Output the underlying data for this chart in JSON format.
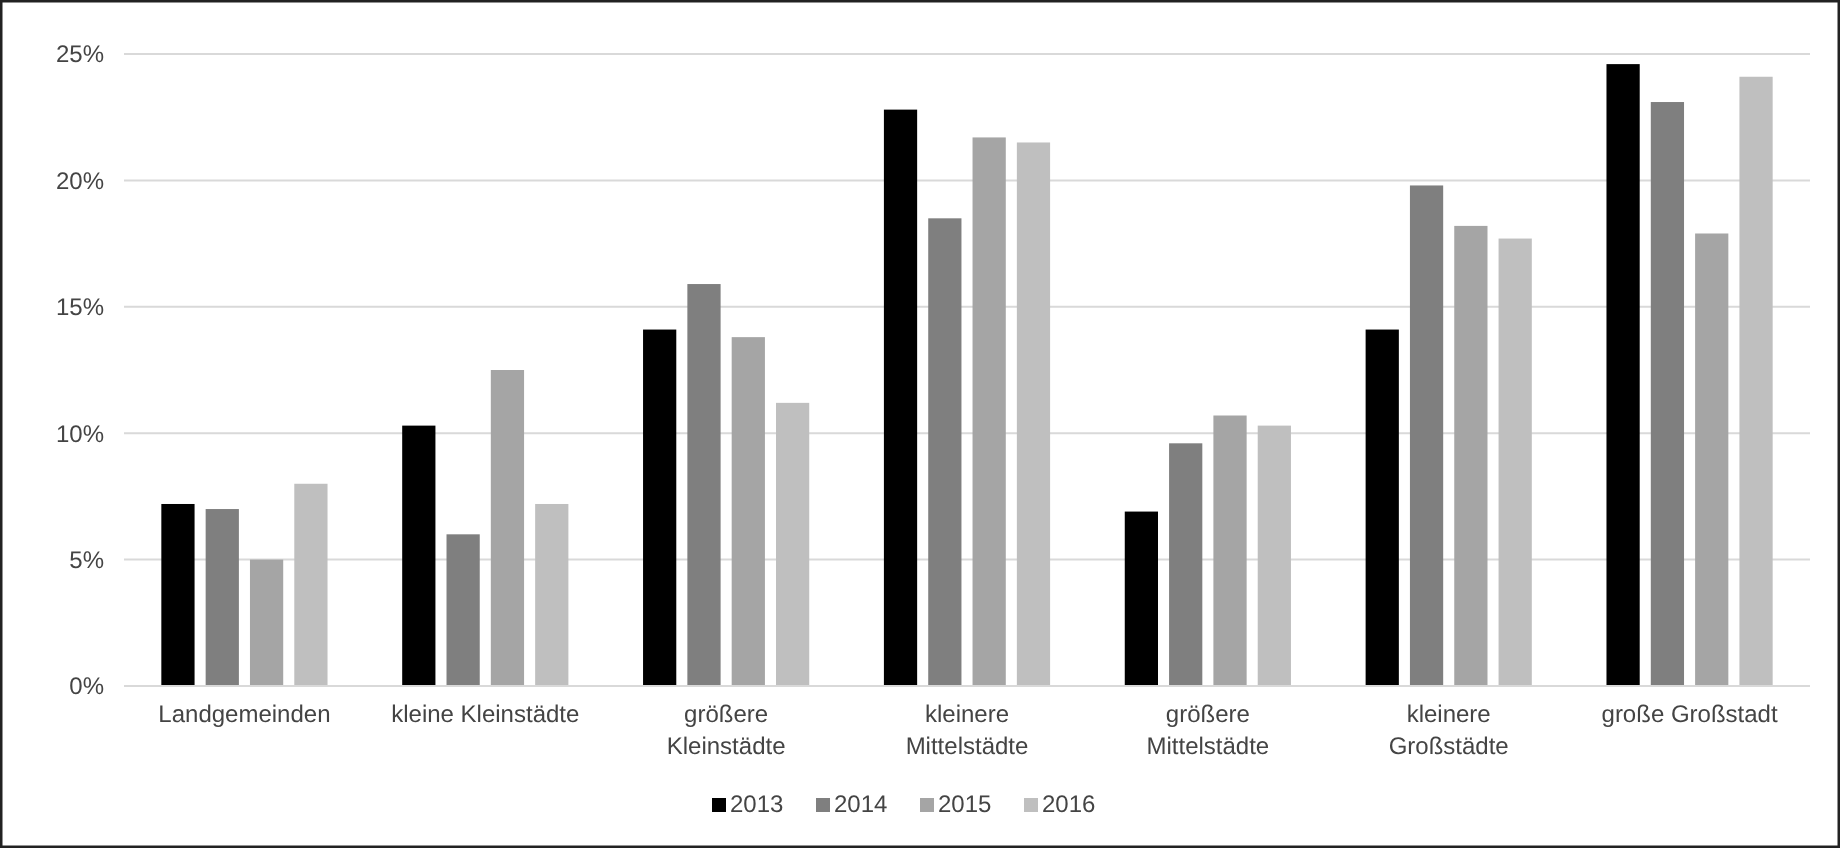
{
  "chart_data": {
    "type": "bar",
    "categories": [
      "Landgemeinden",
      "kleine Kleinstädte",
      "größere Kleinstädte",
      "kleinere Mittelstädte",
      "größere Mittelstädte",
      "kleinere Großstädte",
      "große Großstadt"
    ],
    "series": [
      {
        "name": "2013",
        "color": "#000000",
        "values": [
          7.2,
          10.3,
          14.1,
          22.8,
          6.9,
          14.1,
          24.6
        ]
      },
      {
        "name": "2014",
        "color": "#7f7f7f",
        "values": [
          7.0,
          6.0,
          15.9,
          18.5,
          9.6,
          19.8,
          23.1
        ]
      },
      {
        "name": "2015",
        "color": "#a5a5a5",
        "values": [
          5.0,
          12.5,
          13.8,
          21.7,
          10.7,
          18.2,
          17.9
        ]
      },
      {
        "name": "2016",
        "color": "#bfbfbf",
        "values": [
          8.0,
          7.2,
          11.2,
          21.5,
          10.3,
          17.7,
          24.1
        ]
      }
    ],
    "ylim": [
      0,
      25
    ],
    "yticks": [
      {
        "value": 0,
        "label": "0%"
      },
      {
        "value": 5,
        "label": "5%"
      },
      {
        "value": 10,
        "label": "10%"
      },
      {
        "value": 15,
        "label": "15%"
      },
      {
        "value": 20,
        "label": "20%"
      },
      {
        "value": 25,
        "label": "25%"
      }
    ],
    "grid": "y",
    "legend": "bottom"
  }
}
